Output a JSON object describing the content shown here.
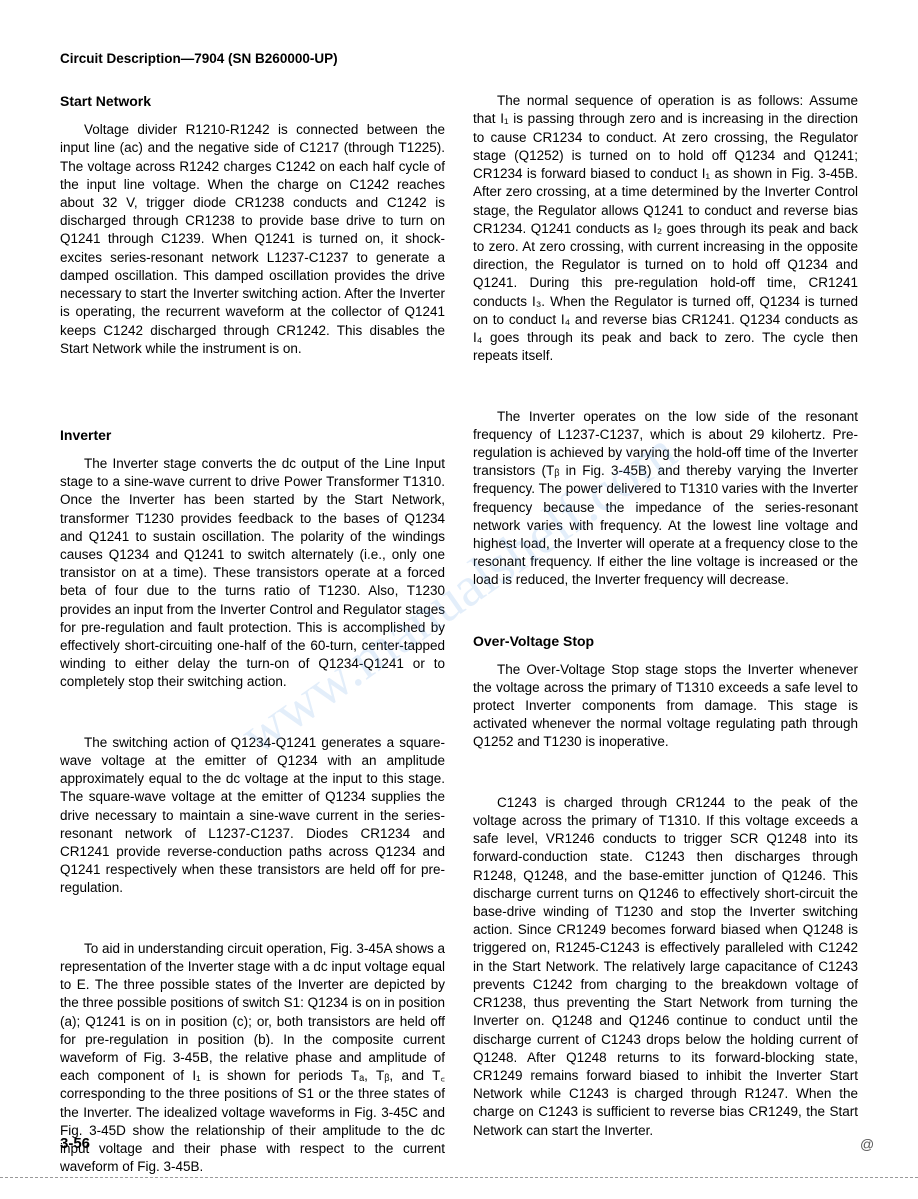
{
  "header": "Circuit Description—7904 (SN B260000-UP)",
  "left_column": {
    "heading1": "Start Network",
    "para1": "Voltage divider R1210-R1242 is connected between the input line (ac) and the negative side of C1217 (through T1225). The voltage across R1242 charges C1242 on each half cycle of the input line voltage. When the charge on C1242 reaches about 32 V, trigger diode CR1238 conducts and C1242 is discharged through CR1238 to provide base drive to turn on Q1241 through C1239. When Q1241 is turned on, it shock-excites series-resonant network L1237-C1237 to generate a damped oscillation. This damped oscillation provides the drive necessary to start the Inverter switching action. After the Inverter is operating, the recurrent waveform at the collector of Q1241 keeps C1242 discharged through CR1242. This disables the Start Network while the instrument is on.",
    "heading2": "Inverter",
    "para2": "The Inverter stage converts the dc output of the Line Input stage to a sine-wave current to drive Power Transformer T1310. Once the Inverter has been started by the Start Network, transformer T1230 provides feedback to the bases of Q1234 and Q1241 to sustain oscillation. The polarity of the windings causes Q1234 and Q1241 to switch alternately (i.e., only one transistor on at a time). These transistors operate at a forced beta of four due to the turns ratio of T1230. Also, T1230 provides an input from the Inverter Control and Regulator stages for pre-regulation and fault protection. This is accomplished by effectively short-circuiting one-half of the 60-turn, center-tapped winding to either delay the turn-on of Q1234-Q1241 or to completely stop their switching action.",
    "para3": "The switching action of Q1234-Q1241 generates a square-wave voltage at the emitter of Q1234 with an amplitude approximately equal to the dc voltage at the input to this stage. The square-wave voltage at the emitter of Q1234 supplies the drive necessary to maintain a sine-wave current in the series-resonant network of L1237-C1237. Diodes CR1234 and CR1241 provide reverse-conduction paths across Q1234 and Q1241 respectively when these transistors are held off for pre-regulation.",
    "para4": "To aid in understanding circuit operation, Fig. 3-45A shows a representation of the Inverter stage with a dc input voltage equal to E. The three possible states of the Inverter are depicted by the three possible positions of switch S1: Q1234 is on in position (a); Q1241 is on in position (c); or, both transistors are held off for pre-regulation in position (b). In the composite current waveform of Fig. 3-45B, the relative phase and amplitude of each component of I₁ is shown for periods Tₐ, Tᵦ, and T꜀ corresponding to the three positions of S1 or the three states of the Inverter. The idealized voltage waveforms in Fig. 3-45C and Fig. 3-45D show the relationship of their amplitude to the dc input voltage and their phase with respect to the current waveform of Fig. 3-45B."
  },
  "right_column": {
    "para1": "The normal sequence of operation is as follows: Assume that I₁ is passing through zero and is increasing in the direction to cause CR1234 to conduct. At zero crossing, the Regulator stage (Q1252) is turned on to hold off Q1234 and Q1241; CR1234 is forward biased to conduct I₁ as shown in Fig. 3-45B. After zero crossing, at a time determined by the Inverter Control stage, the Regulator allows Q1241 to conduct and reverse bias CR1234. Q1241 conducts as I₂ goes through its peak and back to zero. At zero crossing, with current increasing in the opposite direction, the Regulator is turned on to hold off Q1234 and Q1241. During this pre-regulation hold-off time, CR1241 conducts I₃. When the Regulator is turned off, Q1234 is turned on to conduct I₄ and reverse bias CR1241. Q1234 conducts as I₄ goes through its peak and back to zero. The cycle then repeats itself.",
    "para2": "The Inverter operates on the low side of the resonant frequency of L1237-C1237, which is about 29 kilohertz. Pre-regulation is achieved by varying the hold-off time of the Inverter transistors (Tᵦ in Fig. 3-45B) and thereby varying the Inverter frequency. The power delivered to T1310 varies with the Inverter frequency because the impedance of the series-resonant network varies with frequency. At the lowest line voltage and highest load, the Inverter will operate at a frequency close to the resonant frequency. If either the line voltage is increased or the load is reduced, the Inverter frequency will decrease.",
    "heading3": "Over-Voltage Stop",
    "para3": "The Over-Voltage Stop stage stops the Inverter whenever the voltage across the primary of T1310 exceeds a safe level to protect Inverter components from damage. This stage is activated whenever the normal voltage regulating path through Q1252 and T1230 is inoperative.",
    "para4": "C1243 is charged through CR1244 to the peak of the voltage across the primary of T1310. If this voltage exceeds a safe level, VR1246 conducts to trigger SCR Q1248 into its forward-conduction state. C1243 then discharges through R1248, Q1248, and the base-emitter junction of Q1246. This discharge current turns on Q1246 to effectively short-circuit the base-drive winding of T1230 and stop the Inverter switching action. Since CR1249 becomes forward biased when Q1248 is triggered on, R1245-C1243 is effectively paralleled with C1242 in the Start Network. The relatively large capacitance of C1243 prevents C1242 from charging to the breakdown voltage of CR1238, thus preventing the Start Network from turning the Inverter on. Q1248 and Q1246 continue to conduct until the discharge current of C1243 drops below the holding current of Q1248. After Q1248 returns to its forward-blocking state, CR1249 remains forward biased to inhibit the Inverter Start Network while C1243 is charged through R1247. When the charge on C1243 is sufficient to reverse bias CR1249, the Start Network can start the Inverter."
  },
  "page_number": "3-56",
  "footer_mark": "@",
  "watermark_text": "www.manualshelf.com"
}
